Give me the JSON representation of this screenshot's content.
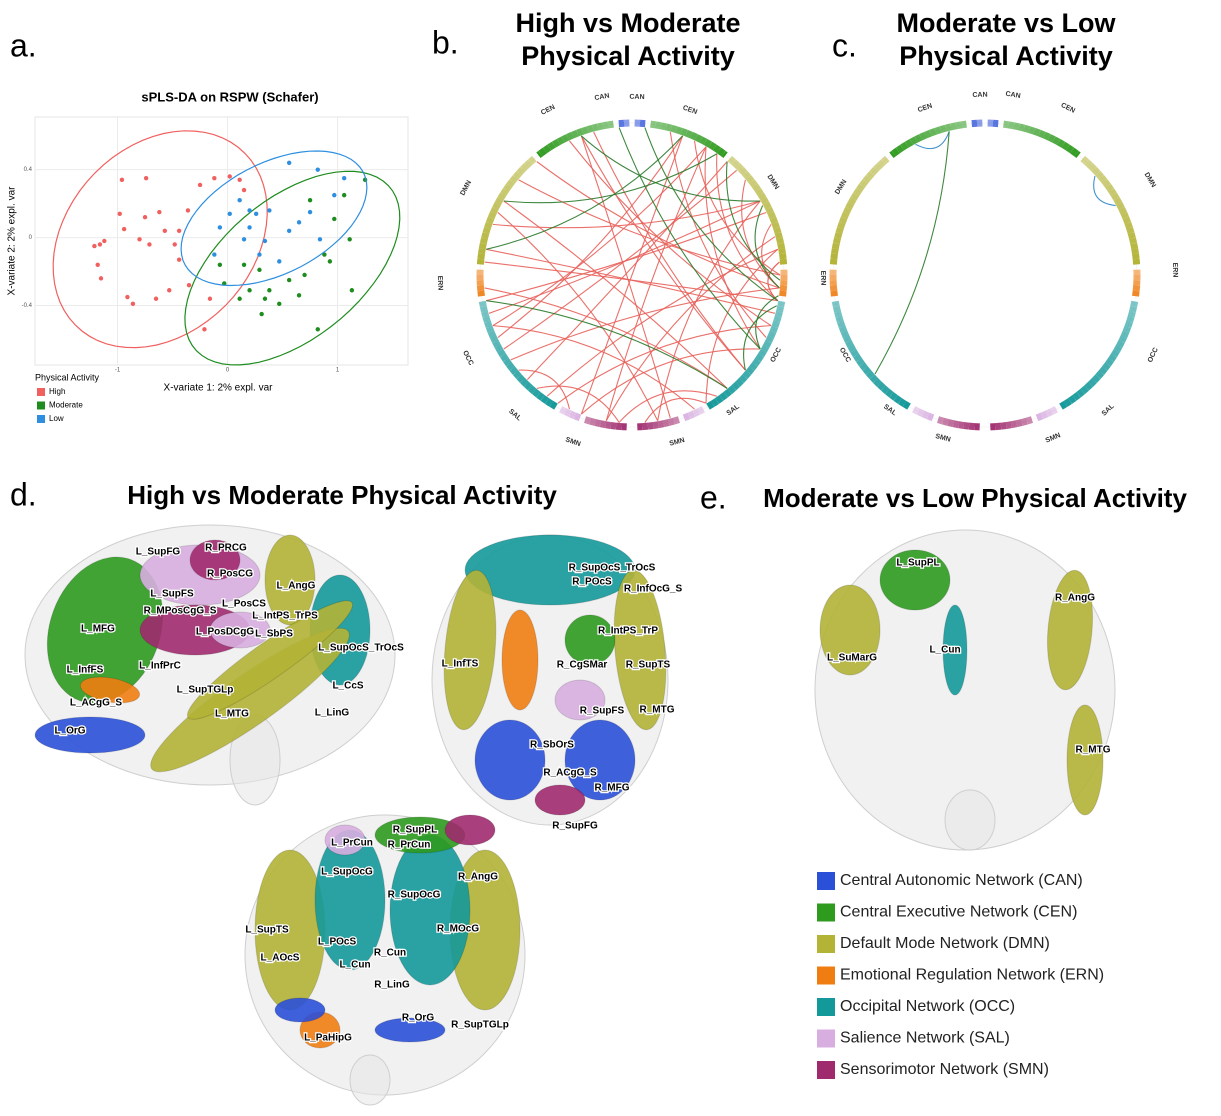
{
  "panel_labels": [
    "a.",
    "b.",
    "c.",
    "d.",
    "e."
  ],
  "chart_data": {
    "type": "scatter",
    "title": "sPLS-DA on RSPW (Schafer)",
    "x_label": "X-variate 1: 2% expl. var",
    "y_label": "X-variate 2: 2% expl. var",
    "legend_title": "Physical Activity",
    "xlim": [
      -1.75,
      1.64
    ],
    "ylim": [
      -0.75,
      0.71
    ],
    "xticks": [
      -1,
      0,
      1
    ],
    "yticks": [
      -0.4,
      0,
      0.4
    ],
    "grid": true,
    "series": [
      {
        "name": "High",
        "color": "#f0605f",
        "x": [
          -0.96,
          -0.74,
          -1.21,
          -1.16,
          -1.12,
          -1.18,
          -1.15,
          -0.91,
          -0.86,
          -0.65,
          -0.98,
          -0.75,
          -0.62,
          -0.57,
          -0.44,
          -0.48,
          -0.44,
          -0.53,
          -0.35,
          -0.21,
          -0.16,
          -0.25,
          -0.12,
          0.02,
          0.11,
          0.15,
          -0.8,
          -0.71,
          -0.94,
          -0.36
        ],
        "values": [
          0.34,
          0.35,
          -0.05,
          -0.04,
          -0.02,
          -0.16,
          -0.24,
          -0.35,
          -0.39,
          -0.36,
          0.14,
          0.12,
          0.15,
          0.04,
          0.04,
          -0.04,
          -0.13,
          -0.31,
          -0.28,
          -0.54,
          -0.36,
          0.31,
          0.35,
          0.36,
          0.34,
          0.28,
          -0.01,
          -0.04,
          0.05,
          0.16
        ]
      },
      {
        "name": "Moderate",
        "color": "#1e8c1e",
        "x": [
          1.25,
          1.06,
          0.97,
          1.11,
          0.88,
          0.7,
          0.56,
          0.65,
          0.38,
          0.34,
          0.2,
          0.11,
          -0.03,
          -0.07,
          0.31,
          0.93,
          1.13,
          0.82,
          0.47,
          0.29,
          0.75,
          0.15
        ],
        "values": [
          0.34,
          0.25,
          0.11,
          -0.01,
          -0.1,
          -0.22,
          -0.25,
          -0.34,
          -0.31,
          -0.36,
          -0.31,
          -0.36,
          -0.27,
          -0.16,
          -0.45,
          -0.14,
          -0.31,
          -0.54,
          -0.39,
          -0.19,
          0.22,
          -0.16
        ]
      },
      {
        "name": "Low",
        "color": "#2e8fe0",
        "x": [
          0.56,
          0.82,
          1.06,
          0.97,
          0.75,
          0.56,
          0.65,
          0.38,
          0.2,
          0.11,
          0.02,
          -0.07,
          -0.12,
          0.2,
          0.26,
          0.34,
          0.29,
          0.47,
          0.15,
          0.84
        ],
        "values": [
          0.44,
          0.4,
          0.35,
          0.25,
          0.15,
          0.04,
          0.09,
          0.16,
          0.16,
          0.22,
          0.14,
          0.06,
          -0.1,
          0.06,
          0.14,
          -0.02,
          -0.1,
          -0.14,
          -0.01,
          -0.01
        ]
      }
    ]
  },
  "chord_b": {
    "title": [
      "High vs Moderate",
      "Physical Activity"
    ],
    "network_labels": [
      "CAN",
      "CAN",
      "CEN",
      "CEN",
      "DMN",
      "DMN",
      "ERN",
      "OCC",
      "OCC",
      "SAL",
      "SAL",
      "SMN",
      "SMN"
    ]
  },
  "chord_c": {
    "title": [
      "Moderate vs Low",
      "Physical Activity"
    ],
    "network_labels": [
      "CEN",
      "CAN",
      "CAN",
      "CEN",
      "DMN",
      "DMN",
      "ERN",
      "ERN",
      "OCC",
      "OCC",
      "SAL",
      "SAL",
      "SMN",
      "SMN"
    ]
  },
  "brain_d": {
    "title": "High vs Moderate Physical Activity",
    "lateral_labels": [
      "L_SupFG",
      "R_PRCG",
      "R_PosCG",
      "L_AngG",
      "L_SupFS",
      "L_PosCS",
      "L_IntPS_TrPS",
      "R_MPosCgG_S",
      "L_MFG",
      "L_PosDCgG",
      "L_SbPS",
      "L_SupOcS_TrOcS",
      "L_InfFS",
      "L_InfPrC",
      "L_CcS",
      "L_SupTGLp",
      "L_ACgG_S",
      "L_MTG",
      "L_LinG",
      "L_OrG"
    ],
    "top_labels": [
      "R_SupOcS_TrOcS",
      "R_POcS",
      "R_InfOcG_S",
      "R_IntPS_TrP",
      "L_InfTS",
      "R_CgSMar",
      "R_SupTS",
      "R_SupFS",
      "R_MTG",
      "R_SbOrS",
      "R_ACgG_S",
      "R_MFG",
      "R_SupFG"
    ],
    "posterior_labels": [
      "R_SupPL",
      "L_PrCun",
      "R_PrCun",
      "R_AngG",
      "L_SupOcG",
      "R_SupOcG",
      "L_SupTS",
      "L_POcS",
      "R_MOcG",
      "R_Cun",
      "L_AOcS",
      "L_Cun",
      "R_LinG",
      "R_OrG",
      "R_SupTGLp",
      "L_PaHipG"
    ]
  },
  "brain_e": {
    "title": "Moderate vs Low Physical Activity",
    "labels": [
      "L_SupPL",
      "R_AngG",
      "L_SuMarG",
      "L_Cun",
      "R_MTG"
    ]
  },
  "legend": [
    {
      "label": "Central Autonomic Network (CAN)",
      "color": "#2b50d8"
    },
    {
      "label": "Central Executive Network (CEN)",
      "color": "#2e9a1e"
    },
    {
      "label": "Default Mode Network (DMN)",
      "color": "#b3b336"
    },
    {
      "label": "Emotional Regulation Network (ERN)",
      "color": "#f07d12"
    },
    {
      "label": "Occipital Network (OCC)",
      "color": "#14999a"
    },
    {
      "label": "Salience Network (SAL)",
      "color": "#d8aee0"
    },
    {
      "label": "Sensorimotor Network (SMN)",
      "color": "#a02a6e"
    }
  ]
}
